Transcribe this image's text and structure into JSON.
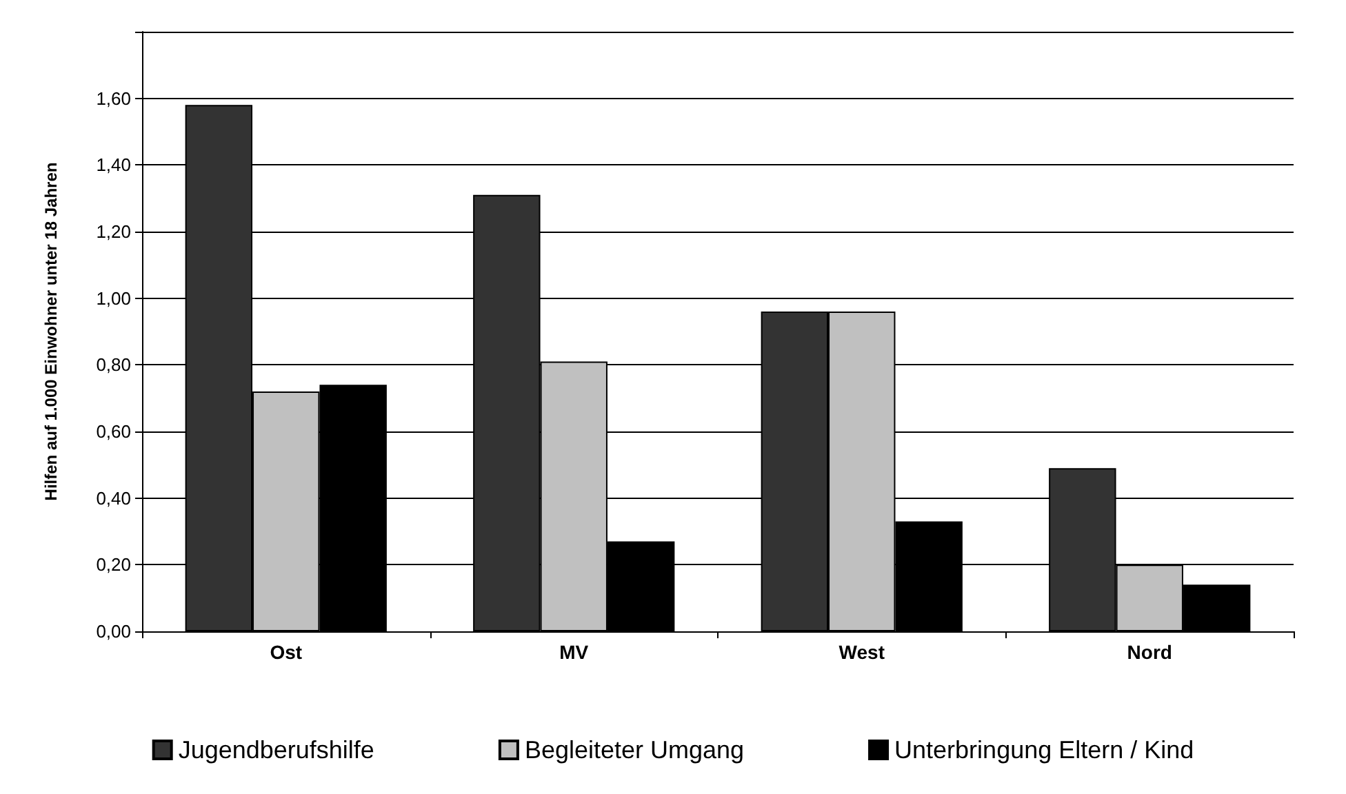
{
  "chart_data": {
    "type": "bar",
    "ylabel": "Hilfen auf 1.000 Einwohner unter 18 Jahren",
    "categories": [
      "Ost",
      "MV",
      "West",
      "Nord"
    ],
    "series": [
      {
        "name": "Jugendberufshilfe",
        "color": "#333333",
        "values": [
          1.58,
          1.31,
          0.96,
          0.49
        ]
      },
      {
        "name": "Begleiteter Umgang",
        "color": "#c0c0c0",
        "values": [
          0.72,
          0.81,
          0.96,
          0.2
        ]
      },
      {
        "name": "Unterbringung Eltern / Kind",
        "color": "#000000",
        "values": [
          0.74,
          0.27,
          0.33,
          0.14
        ]
      }
    ],
    "ylim": [
      0,
      1.8
    ],
    "yticks": [
      {
        "value": 0,
        "label": "0,00"
      },
      {
        "value": 0.2,
        "label": "0,20"
      },
      {
        "value": 0.4,
        "label": "0,40"
      },
      {
        "value": 0.6,
        "label": "0,60"
      },
      {
        "value": 0.8,
        "label": "0,80"
      },
      {
        "value": 1,
        "label": "1,00"
      },
      {
        "value": 1.2,
        "label": "1,20"
      },
      {
        "value": 1.4,
        "label": "1,40"
      },
      {
        "value": 1.6,
        "label": "1,60"
      },
      {
        "value": 1.8,
        "label": null
      }
    ],
    "grid": "y",
    "legend": "bottom"
  }
}
